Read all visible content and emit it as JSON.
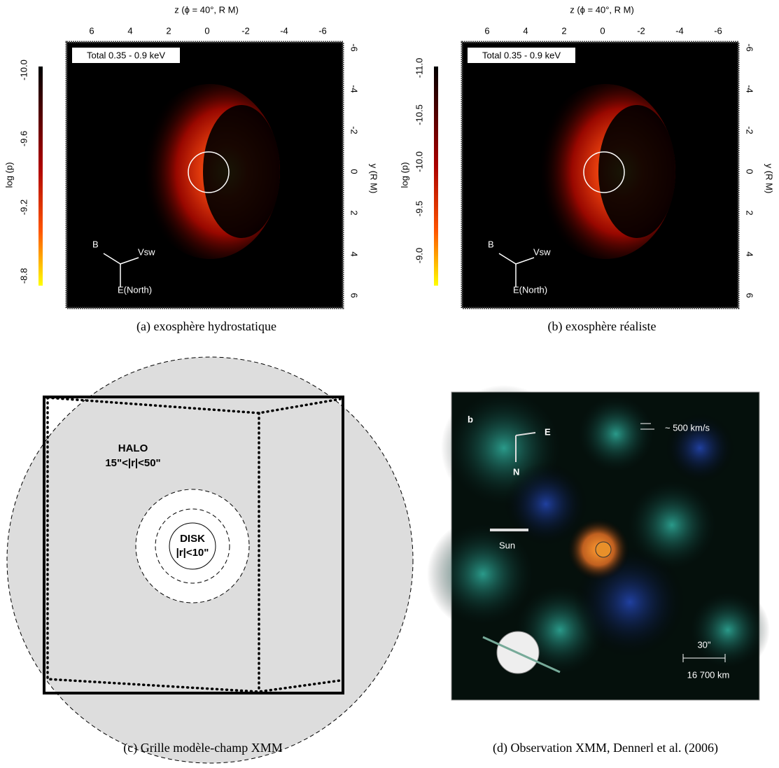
{
  "panels": [
    {
      "axis_top_label": "z (ϕ = 40°, R M)",
      "top_ticks": [
        "6",
        "4",
        "2",
        "0",
        "-2",
        "-4",
        "-6"
      ],
      "axis_right_label": "y (R M)",
      "right_ticks": [
        "-6",
        "-4",
        "-2",
        "0",
        "2",
        "4",
        "6"
      ],
      "colorbar_label": "log (p)",
      "colorbar_ticks": [
        "-10.0",
        "-9.6",
        "-9.2",
        "-8.8"
      ],
      "box_label": "Total 0.35 - 0.9 keV",
      "arrows": [
        "B",
        "Vsw",
        "E(North)"
      ],
      "caption": "(a)  exosphère hydrostatique"
    },
    {
      "axis_top_label": "z (ϕ = 40°, R M)",
      "top_ticks": [
        "6",
        "4",
        "2",
        "0",
        "-2",
        "-4",
        "-6"
      ],
      "axis_right_label": "y (R M)",
      "right_ticks": [
        "-6",
        "-4",
        "-2",
        "0",
        "2",
        "4",
        "6"
      ],
      "colorbar_label": "log (p)",
      "colorbar_ticks": [
        "-11.0",
        "-10.5",
        "-10.0",
        "-9.5",
        "-9.0"
      ],
      "box_label": "Total 0.35 - 0.9 keV",
      "arrows": [
        "B",
        "Vsw",
        "E(North)"
      ],
      "caption": "(b)  exosphère réaliste"
    }
  ],
  "grid_panel": {
    "halo": [
      "HALO",
      "15\"<|r|<50\""
    ],
    "disk": [
      "DISK",
      "|r|<10\""
    ],
    "caption": "(c)  Grille modèle-champ XMM"
  },
  "observation_panel": {
    "panel_letter": "b",
    "east": "E",
    "north": "N",
    "speed": "~ 500 km/s",
    "sun": "Sun",
    "scale": [
      "30\"",
      "16 700 km"
    ],
    "caption": "(d)  Observation XMM, Dennerl et al. (2006)"
  }
}
